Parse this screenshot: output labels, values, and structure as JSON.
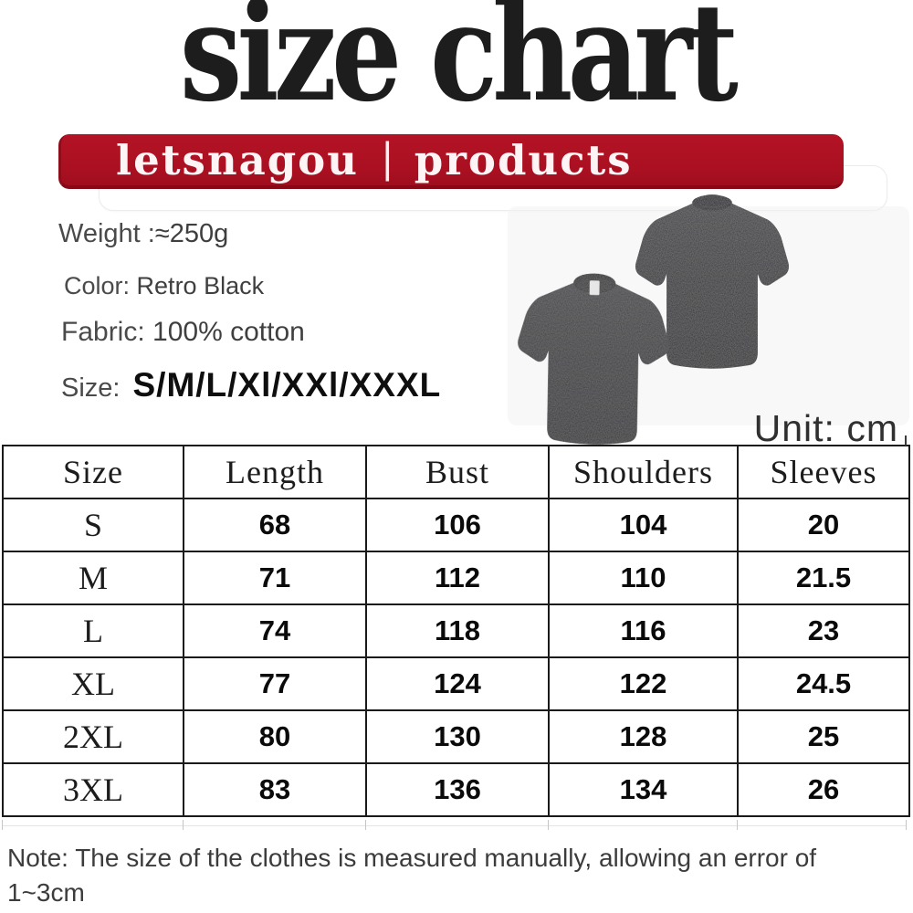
{
  "title": "size chart",
  "banner": {
    "brand": "letsnagou",
    "separator": "|",
    "product": "products"
  },
  "details": {
    "weight_label": "Weight :",
    "weight_value": "≈250g",
    "color_label": "Color:",
    "color_value": "Retro Black",
    "fabric_label": "Fabric:",
    "fabric_value": "100% cotton",
    "size_label": "Size:",
    "size_value": "S/M/L/Xl/XXl/XXXL"
  },
  "unit_label": "Unit: cm",
  "size_table": {
    "columns": [
      "Size",
      "Length",
      "Bust",
      "Shoulders",
      "Sleeves"
    ],
    "rows": [
      [
        "S",
        "68",
        "106",
        "104",
        "20"
      ],
      [
        "M",
        "71",
        "112",
        "110",
        "21.5"
      ],
      [
        "L",
        "74",
        "118",
        "116",
        "23"
      ],
      [
        "XL",
        "77",
        "124",
        "122",
        "24.5"
      ],
      [
        "2XL",
        "80",
        "130",
        "128",
        "25"
      ],
      [
        "3XL",
        "83",
        "136",
        "134",
        "26"
      ]
    ]
  },
  "note": {
    "lines": [
      "Note: The size of the clothes is measured manually, allowing an error of",
      "1~3cm"
    ]
  },
  "images": {
    "front_shirt": "t-shirt-front-view",
    "back_shirt": "t-shirt-back-view"
  },
  "colors": {
    "banner_red": "#AC1122",
    "shirt_charcoal": "#2B2B2D",
    "title_black": "#1D1D1D"
  }
}
